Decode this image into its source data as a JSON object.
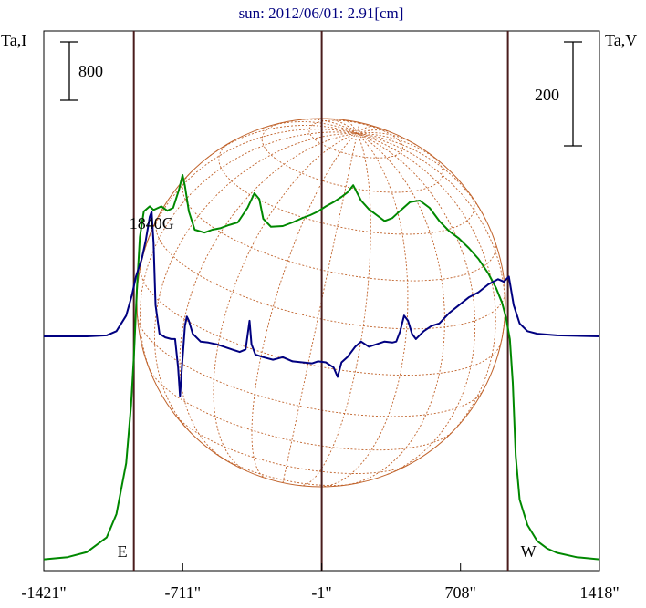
{
  "chart_data": {
    "type": "line",
    "title": "sun: 2012/06/01: 2.91[cm]",
    "left_axis_label": "Ta,I",
    "right_axis_label": "Ta,V",
    "left_scale_bar_value": 800,
    "right_scale_bar_value": 200,
    "x_ticks": [
      {
        "value": -1421,
        "label": "-1421\""
      },
      {
        "value": -711,
        "label": "-711\""
      },
      {
        "value": -1,
        "label": "-1\""
      },
      {
        "value": 708,
        "label": "708\""
      },
      {
        "value": 1418,
        "label": "1418\""
      }
    ],
    "xlim": [
      -1421,
      1418
    ],
    "limb_markers": [
      {
        "label": "E",
        "x": -961
      },
      {
        "label": "W",
        "x": 950
      }
    ],
    "annotations": [
      {
        "label": "1840G",
        "x": -870
      }
    ],
    "series": [
      {
        "color": "#008800",
        "y_axis": "left",
        "points": [
          [
            -1421,
            80
          ],
          [
            -1300,
            110
          ],
          [
            -1200,
            180
          ],
          [
            -1100,
            380
          ],
          [
            -1050,
            700
          ],
          [
            -1000,
            1400
          ],
          [
            -975,
            2200
          ],
          [
            -960,
            2900
          ],
          [
            -945,
            3800
          ],
          [
            -930,
            4500
          ],
          [
            -910,
            4850
          ],
          [
            -880,
            4920
          ],
          [
            -860,
            4870
          ],
          [
            -820,
            4920
          ],
          [
            -790,
            4860
          ],
          [
            -760,
            4900
          ],
          [
            -730,
            5150
          ],
          [
            -712,
            5350
          ],
          [
            -700,
            5200
          ],
          [
            -680,
            4850
          ],
          [
            -650,
            4600
          ],
          [
            -600,
            4560
          ],
          [
            -560,
            4600
          ],
          [
            -520,
            4620
          ],
          [
            -480,
            4660
          ],
          [
            -430,
            4700
          ],
          [
            -380,
            4900
          ],
          [
            -345,
            5100
          ],
          [
            -320,
            5020
          ],
          [
            -300,
            4750
          ],
          [
            -260,
            4640
          ],
          [
            -200,
            4650
          ],
          [
            -150,
            4700
          ],
          [
            -100,
            4760
          ],
          [
            -60,
            4800
          ],
          [
            -20,
            4850
          ],
          [
            20,
            4920
          ],
          [
            60,
            4980
          ],
          [
            100,
            5050
          ],
          [
            130,
            5110
          ],
          [
            160,
            5210
          ],
          [
            200,
            5000
          ],
          [
            240,
            4880
          ],
          [
            280,
            4800
          ],
          [
            320,
            4720
          ],
          [
            360,
            4760
          ],
          [
            400,
            4860
          ],
          [
            450,
            4980
          ],
          [
            500,
            5000
          ],
          [
            550,
            4900
          ],
          [
            600,
            4720
          ],
          [
            650,
            4580
          ],
          [
            700,
            4480
          ],
          [
            750,
            4350
          ],
          [
            800,
            4200
          ],
          [
            850,
            4000
          ],
          [
            890,
            3800
          ],
          [
            920,
            3600
          ],
          [
            940,
            3400
          ],
          [
            960,
            3100
          ],
          [
            975,
            2500
          ],
          [
            990,
            1500
          ],
          [
            1010,
            900
          ],
          [
            1050,
            550
          ],
          [
            1100,
            330
          ],
          [
            1150,
            230
          ],
          [
            1200,
            170
          ],
          [
            1300,
            110
          ],
          [
            1418,
            80
          ]
        ]
      },
      {
        "color": "#000080",
        "y_axis": "right",
        "points": [
          [
            -1421,
            0
          ],
          [
            -1200,
            0
          ],
          [
            -1100,
            2
          ],
          [
            -1050,
            10
          ],
          [
            -1000,
            40
          ],
          [
            -970,
            80
          ],
          [
            -950,
            115
          ],
          [
            -920,
            150
          ],
          [
            -900,
            185
          ],
          [
            -880,
            230
          ],
          [
            -870,
            240
          ],
          [
            -860,
            180
          ],
          [
            -850,
            60
          ],
          [
            -830,
            5
          ],
          [
            -800,
            -2
          ],
          [
            -770,
            -5
          ],
          [
            -750,
            -5
          ],
          [
            -735,
            -60
          ],
          [
            -725,
            -115
          ],
          [
            -715,
            -60
          ],
          [
            -700,
            20
          ],
          [
            -690,
            38
          ],
          [
            -680,
            30
          ],
          [
            -660,
            5
          ],
          [
            -620,
            -10
          ],
          [
            -580,
            -12
          ],
          [
            -540,
            -15
          ],
          [
            -500,
            -20
          ],
          [
            -460,
            -25
          ],
          [
            -420,
            -30
          ],
          [
            -390,
            -25
          ],
          [
            -370,
            30
          ],
          [
            -360,
            -15
          ],
          [
            -340,
            -35
          ],
          [
            -300,
            -40
          ],
          [
            -250,
            -45
          ],
          [
            -200,
            -40
          ],
          [
            -150,
            -48
          ],
          [
            -100,
            -50
          ],
          [
            -50,
            -52
          ],
          [
            -20,
            -48
          ],
          [
            20,
            -50
          ],
          [
            60,
            -60
          ],
          [
            80,
            -78
          ],
          [
            100,
            -50
          ],
          [
            130,
            -40
          ],
          [
            170,
            -20
          ],
          [
            200,
            -10
          ],
          [
            240,
            -20
          ],
          [
            280,
            -15
          ],
          [
            320,
            -10
          ],
          [
            360,
            -12
          ],
          [
            380,
            -10
          ],
          [
            400,
            10
          ],
          [
            420,
            40
          ],
          [
            440,
            30
          ],
          [
            460,
            5
          ],
          [
            480,
            -5
          ],
          [
            520,
            10
          ],
          [
            560,
            20
          ],
          [
            600,
            25
          ],
          [
            650,
            45
          ],
          [
            700,
            60
          ],
          [
            750,
            75
          ],
          [
            800,
            85
          ],
          [
            850,
            100
          ],
          [
            900,
            110
          ],
          [
            930,
            105
          ],
          [
            955,
            115
          ],
          [
            980,
            60
          ],
          [
            1010,
            25
          ],
          [
            1050,
            10
          ],
          [
            1100,
            5
          ],
          [
            1200,
            2
          ],
          [
            1418,
            0
          ]
        ]
      }
    ]
  }
}
